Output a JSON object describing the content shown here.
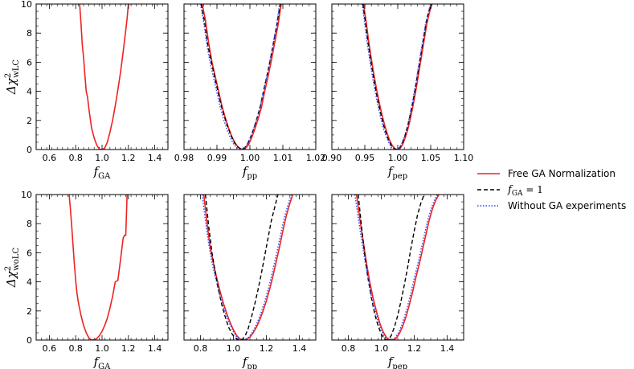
{
  "legend": {
    "placement": "right",
    "entries": [
      {
        "key": "free",
        "label": "Free GA Normalization",
        "color": "#ee2222",
        "dash": "solid"
      },
      {
        "key": "fixed",
        "label_math": "f",
        "label_sub": "GA",
        "label_rest": " = 1",
        "color": "#000000",
        "dash": "dashed"
      },
      {
        "key": "nodata",
        "label": "Without GA experiments",
        "color": "#3344ff",
        "dash": "dotted"
      }
    ]
  },
  "chart_data": [
    {
      "type": "line",
      "row": 0,
      "col": 0,
      "xlabel_main": "f",
      "xlabel_sub": "GA",
      "ylabel_main": "Δχ",
      "ylabel_sup": "2",
      "ylabel_sub": "wLC",
      "xlim": [
        0.5,
        1.5
      ],
      "ylim": [
        0,
        10
      ],
      "xticks": [
        "0.6",
        "0.8",
        "1.0",
        "1.2",
        "1.4"
      ],
      "xtick_values": [
        0.6,
        0.8,
        1.0,
        1.2,
        1.4
      ],
      "yticks": [
        "0",
        "2",
        "4",
        "6",
        "8",
        "10"
      ],
      "ytick_values": [
        0,
        2,
        4,
        6,
        8,
        10
      ],
      "series": [
        {
          "key": "free",
          "x": [
            0.83,
            0.84,
            0.85,
            0.86,
            0.87,
            0.88,
            0.89,
            0.9,
            0.92,
            0.94,
            0.96,
            0.98,
            1.0,
            1.02,
            1.04,
            1.06,
            1.08,
            1.1,
            1.12,
            1.14,
            1.16,
            1.18,
            1.19,
            1.2
          ],
          "y": [
            10,
            8.7,
            7.2,
            6.3,
            5.1,
            4.0,
            3.6,
            2.8,
            1.5,
            0.8,
            0.3,
            0.03,
            0.0,
            0.1,
            0.5,
            1.2,
            2.0,
            3.0,
            4.1,
            5.3,
            6.7,
            8.2,
            9.0,
            10
          ]
        }
      ]
    },
    {
      "type": "line",
      "row": 0,
      "col": 1,
      "xlabel_main": "f",
      "xlabel_sub": "pp",
      "xlim": [
        0.98,
        1.02
      ],
      "ylim": [
        0,
        10
      ],
      "xticks": [
        "0.98",
        "0.99",
        "1.00",
        "1.01",
        "1.02"
      ],
      "xtick_values": [
        0.98,
        0.99,
        1.0,
        1.01,
        1.02
      ],
      "series": [
        {
          "key": "free",
          "x": [
            0.9855,
            0.9865,
            0.9875,
            0.9885,
            0.9895,
            0.9905,
            0.9915,
            0.9925,
            0.9935,
            0.9945,
            0.9955,
            0.9965,
            0.9975,
            0.9985,
            0.9995,
            1.0005,
            1.0015,
            1.0025,
            1.0035,
            1.0045,
            1.0055,
            1.0065,
            1.0075,
            1.0085,
            1.0095
          ],
          "y": [
            10,
            8.9,
            7.3,
            6.0,
            5.0,
            4.0,
            3.0,
            2.2,
            1.5,
            0.9,
            0.45,
            0.15,
            0.02,
            0.05,
            0.3,
            0.8,
            1.4,
            2.1,
            2.9,
            4.0,
            5.0,
            6.1,
            7.3,
            8.5,
            10
          ]
        },
        {
          "key": "fixed",
          "x": [
            0.9852,
            0.9862,
            0.9872,
            0.9882,
            0.9892,
            0.9902,
            0.9912,
            0.9922,
            0.9932,
            0.9942,
            0.9952,
            0.9962,
            0.9972,
            0.9982,
            0.9992,
            1.0002,
            1.0012,
            1.0022,
            1.0032,
            1.0042,
            1.0052,
            1.0062,
            1.0072,
            1.0082,
            1.0092
          ],
          "y": [
            10,
            8.8,
            7.2,
            6.1,
            5.1,
            4.1,
            3.1,
            2.3,
            1.6,
            1.0,
            0.5,
            0.2,
            0.03,
            0.06,
            0.35,
            0.85,
            1.45,
            2.2,
            3.0,
            4.1,
            5.1,
            6.2,
            7.4,
            8.6,
            10
          ]
        },
        {
          "key": "nodata",
          "x": [
            0.985,
            0.986,
            0.987,
            0.988,
            0.989,
            0.99,
            0.991,
            0.992,
            0.993,
            0.994,
            0.995,
            0.996,
            0.997,
            0.998,
            0.999,
            1.0,
            1.001,
            1.002,
            1.003,
            1.004,
            1.005,
            1.006,
            1.007,
            1.008,
            1.009
          ],
          "y": [
            10,
            8.7,
            7.1,
            5.9,
            4.9,
            3.9,
            2.9,
            2.1,
            1.4,
            0.85,
            0.4,
            0.12,
            0.01,
            0.05,
            0.28,
            0.75,
            1.35,
            2.05,
            2.85,
            3.9,
            4.9,
            6.0,
            7.2,
            8.4,
            10
          ]
        }
      ]
    },
    {
      "type": "line",
      "row": 0,
      "col": 2,
      "xlabel_main": "f",
      "xlabel_sub": "pep",
      "xlim": [
        0.9,
        1.1
      ],
      "ylim": [
        0,
        10
      ],
      "xticks": [
        "0.90",
        "0.95",
        "1.00",
        "1.05",
        "1.10"
      ],
      "xtick_values": [
        0.9,
        0.95,
        1.0,
        1.05,
        1.1
      ],
      "series": [
        {
          "key": "free",
          "x": [
            0.948,
            0.952,
            0.956,
            0.96,
            0.964,
            0.968,
            0.972,
            0.976,
            0.98,
            0.984,
            0.988,
            0.992,
            0.996,
            1.0,
            1.004,
            1.008,
            1.012,
            1.016,
            1.02,
            1.024,
            1.028,
            1.032,
            1.036,
            1.04,
            1.044,
            1.048,
            1.052
          ],
          "y": [
            10,
            8.8,
            7.4,
            6.2,
            5.1,
            4.1,
            3.2,
            2.4,
            1.7,
            1.1,
            0.6,
            0.25,
            0.05,
            0.0,
            0.1,
            0.4,
            0.9,
            1.5,
            2.3,
            3.2,
            4.2,
            5.3,
            6.4,
            7.5,
            8.6,
            9.4,
            10
          ]
        },
        {
          "key": "fixed",
          "x": [
            0.947,
            0.951,
            0.955,
            0.959,
            0.963,
            0.967,
            0.971,
            0.975,
            0.979,
            0.983,
            0.987,
            0.991,
            0.995,
            0.999,
            1.003,
            1.007,
            1.011,
            1.015,
            1.019,
            1.023,
            1.027,
            1.031,
            1.035,
            1.039,
            1.043,
            1.047,
            1.051
          ],
          "y": [
            10,
            8.7,
            7.3,
            6.1,
            5.0,
            4.0,
            3.1,
            2.3,
            1.6,
            1.0,
            0.55,
            0.2,
            0.04,
            0.0,
            0.12,
            0.45,
            0.95,
            1.6,
            2.4,
            3.3,
            4.3,
            5.4,
            6.5,
            7.6,
            8.7,
            9.5,
            10
          ]
        },
        {
          "key": "nodata",
          "x": [
            0.946,
            0.95,
            0.954,
            0.958,
            0.962,
            0.966,
            0.97,
            0.974,
            0.978,
            0.982,
            0.986,
            0.99,
            0.994,
            0.998,
            1.002,
            1.006,
            1.01,
            1.014,
            1.018,
            1.022,
            1.026,
            1.03,
            1.034,
            1.038,
            1.042,
            1.046,
            1.05
          ],
          "y": [
            10,
            8.6,
            7.2,
            6.0,
            4.9,
            3.9,
            3.0,
            2.2,
            1.5,
            0.95,
            0.5,
            0.18,
            0.03,
            0.0,
            0.1,
            0.4,
            0.9,
            1.5,
            2.3,
            3.2,
            4.2,
            5.3,
            6.4,
            7.5,
            8.6,
            9.4,
            10
          ]
        }
      ]
    },
    {
      "type": "line",
      "row": 1,
      "col": 0,
      "xlabel_main": "f",
      "xlabel_sub": "GA",
      "ylabel_main": "Δχ",
      "ylabel_sup": "2",
      "ylabel_sub": "woLC",
      "xlim": [
        0.5,
        1.5
      ],
      "ylim": [
        0,
        10
      ],
      "xticks": [
        "0.6",
        "0.8",
        "1.0",
        "1.2",
        "1.4"
      ],
      "xtick_values": [
        0.6,
        0.8,
        1.0,
        1.2,
        1.4
      ],
      "yticks": [
        "0",
        "2",
        "4",
        "6",
        "8",
        "10"
      ],
      "ytick_values": [
        0,
        2,
        4,
        6,
        8,
        10
      ],
      "series": [
        {
          "key": "free",
          "x": [
            0.75,
            0.76,
            0.77,
            0.78,
            0.79,
            0.8,
            0.81,
            0.82,
            0.84,
            0.86,
            0.88,
            0.9,
            0.92,
            0.94,
            0.96,
            0.98,
            1.0,
            1.02,
            1.04,
            1.06,
            1.08,
            1.1,
            1.12,
            1.14,
            1.16,
            1.17,
            1.18,
            1.19
          ],
          "y": [
            10,
            9.0,
            7.8,
            6.5,
            5.2,
            4.1,
            3.2,
            2.6,
            1.7,
            1.0,
            0.5,
            0.15,
            0.0,
            0.02,
            0.1,
            0.3,
            0.6,
            1.0,
            1.5,
            2.2,
            3.0,
            4.0,
            4.1,
            5.5,
            7.0,
            7.2,
            7.2,
            10
          ]
        }
      ]
    },
    {
      "type": "line",
      "row": 1,
      "col": 1,
      "xlabel_main": "f",
      "xlabel_sub": "pp",
      "xlim": [
        0.7,
        1.5
      ],
      "ylim": [
        0,
        10
      ],
      "xticks": [
        "0.8",
        "1.0",
        "1.2",
        "1.4"
      ],
      "xtick_values": [
        0.8,
        1.0,
        1.2,
        1.4
      ],
      "series": [
        {
          "key": "free",
          "x": [
            0.82,
            0.84,
            0.86,
            0.88,
            0.9,
            0.92,
            0.94,
            0.96,
            0.98,
            1.0,
            1.02,
            1.04,
            1.06,
            1.08,
            1.1,
            1.12,
            1.14,
            1.16,
            1.18,
            1.2,
            1.22,
            1.24,
            1.26,
            1.28,
            1.3,
            1.32,
            1.34,
            1.36
          ],
          "y": [
            10,
            8.0,
            6.3,
            5.2,
            4.2,
            3.3,
            2.5,
            1.8,
            1.2,
            0.7,
            0.3,
            0.08,
            0.0,
            0.05,
            0.2,
            0.5,
            0.9,
            1.4,
            2.0,
            2.7,
            3.5,
            4.4,
            5.4,
            6.4,
            7.5,
            8.5,
            9.3,
            10
          ]
        },
        {
          "key": "fixed",
          "x": [
            0.83,
            0.85,
            0.87,
            0.89,
            0.91,
            0.93,
            0.95,
            0.97,
            0.99,
            1.01,
            1.03,
            1.05,
            1.07,
            1.09,
            1.11,
            1.13,
            1.15,
            1.17,
            1.19,
            1.21,
            1.23,
            1.25,
            1.27
          ],
          "y": [
            10,
            7.8,
            6.0,
            4.6,
            3.4,
            2.4,
            1.6,
            0.9,
            0.45,
            0.15,
            0.02,
            0.0,
            0.25,
            0.8,
            1.6,
            2.5,
            3.5,
            4.6,
            5.8,
            7.0,
            8.2,
            9.1,
            10
          ]
        },
        {
          "key": "nodata",
          "x": [
            0.81,
            0.83,
            0.85,
            0.87,
            0.89,
            0.91,
            0.93,
            0.95,
            0.97,
            0.99,
            1.01,
            1.03,
            1.05,
            1.07,
            1.09,
            1.11,
            1.13,
            1.15,
            1.17,
            1.19,
            1.21,
            1.23,
            1.25,
            1.27,
            1.29,
            1.31,
            1.33,
            1.35
          ],
          "y": [
            10,
            8.2,
            6.6,
            5.3,
            4.3,
            3.4,
            2.6,
            1.9,
            1.3,
            0.8,
            0.35,
            0.1,
            0.0,
            0.04,
            0.18,
            0.45,
            0.85,
            1.35,
            1.95,
            2.65,
            3.45,
            4.35,
            5.35,
            6.35,
            7.45,
            8.45,
            9.25,
            10
          ]
        }
      ]
    },
    {
      "type": "line",
      "row": 1,
      "col": 2,
      "xlabel_main": "f",
      "xlabel_sub": "pep",
      "xlim": [
        0.7,
        1.5
      ],
      "ylim": [
        0,
        10
      ],
      "xticks": [
        "0.8",
        "1.0",
        "1.2",
        "1.4"
      ],
      "xtick_values": [
        0.8,
        1.0,
        1.2,
        1.4
      ],
      "series": [
        {
          "key": "free",
          "x": [
            0.85,
            0.87,
            0.89,
            0.91,
            0.93,
            0.95,
            0.97,
            0.99,
            1.01,
            1.03,
            1.05,
            1.07,
            1.09,
            1.11,
            1.13,
            1.15,
            1.17,
            1.19,
            1.21,
            1.23,
            1.25,
            1.27,
            1.29,
            1.31,
            1.33,
            1.35
          ],
          "y": [
            10,
            8.3,
            6.8,
            5.3,
            4.0,
            2.9,
            2.0,
            1.2,
            0.6,
            0.2,
            0.03,
            0.0,
            0.12,
            0.45,
            0.95,
            1.6,
            2.4,
            3.3,
            4.3,
            5.2,
            6.2,
            7.2,
            8.2,
            9.0,
            9.6,
            10
          ]
        },
        {
          "key": "fixed",
          "x": [
            0.86,
            0.88,
            0.9,
            0.92,
            0.94,
            0.96,
            0.98,
            1.0,
            1.02,
            1.04,
            1.06,
            1.08,
            1.1,
            1.12,
            1.14,
            1.16,
            1.18,
            1.2,
            1.22,
            1.24,
            1.26
          ],
          "y": [
            10,
            7.8,
            5.8,
            4.2,
            2.9,
            1.8,
            1.0,
            0.4,
            0.08,
            0.0,
            0.3,
            0.9,
            1.7,
            2.7,
            3.8,
            5.0,
            6.3,
            7.5,
            8.6,
            9.4,
            10
          ]
        },
        {
          "key": "nodata",
          "x": [
            0.84,
            0.86,
            0.88,
            0.9,
            0.92,
            0.94,
            0.96,
            0.98,
            1.0,
            1.02,
            1.04,
            1.06,
            1.08,
            1.1,
            1.12,
            1.14,
            1.16,
            1.18,
            1.2,
            1.22,
            1.24,
            1.26,
            1.28,
            1.3,
            1.32,
            1.34
          ],
          "y": [
            10,
            8.4,
            6.9,
            5.5,
            4.2,
            3.0,
            2.1,
            1.3,
            0.65,
            0.22,
            0.04,
            0.0,
            0.1,
            0.42,
            0.9,
            1.55,
            2.35,
            3.25,
            4.25,
            5.15,
            6.15,
            7.15,
            8.15,
            8.95,
            9.55,
            10
          ]
        }
      ]
    }
  ]
}
